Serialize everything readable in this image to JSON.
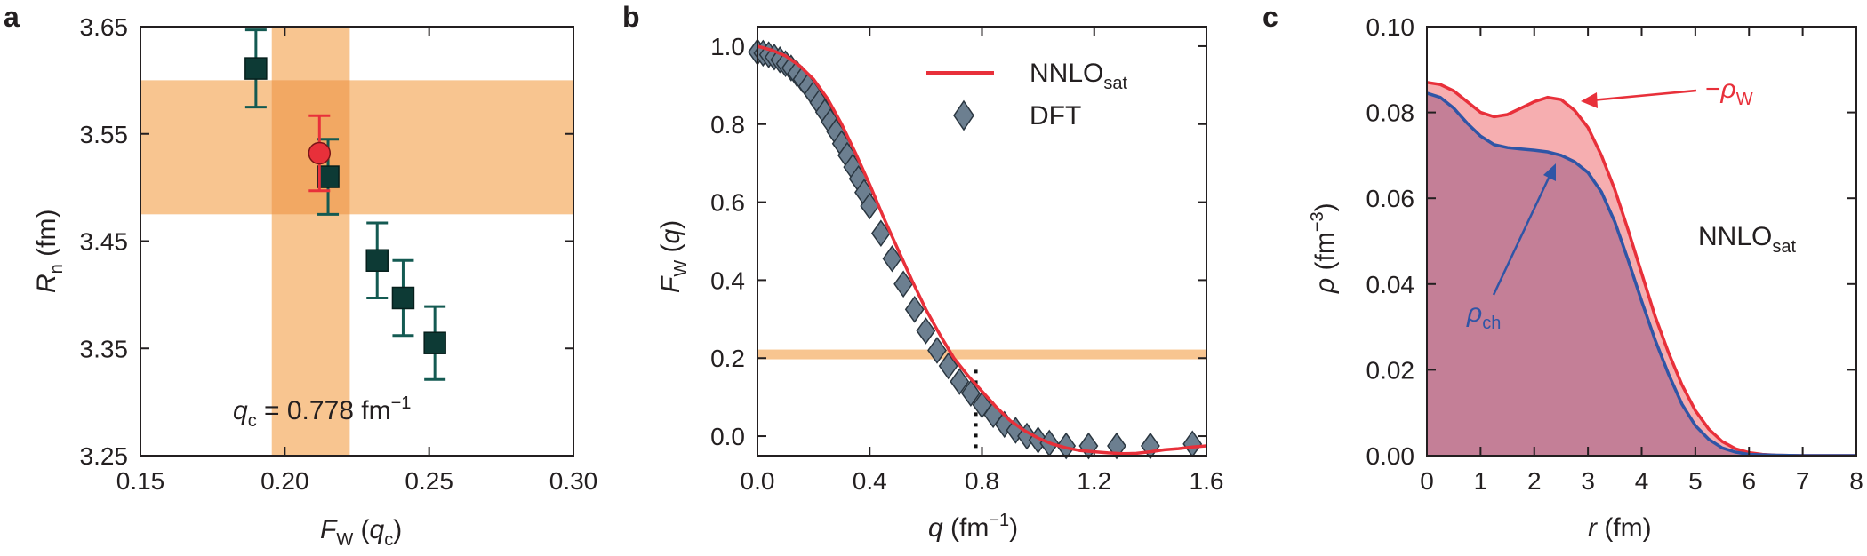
{
  "colors": {
    "band": "#f8c590",
    "band_overlap": "#f2a863",
    "square": "#0d3a35",
    "errbar": "#145a52",
    "red": "#e8303a",
    "blue": "#2f55a6",
    "diamond": "#6c7f90",
    "fill_ch": "#c47f97",
    "fill_w": "#f6aeb0"
  },
  "chart_data": [
    {
      "panel": "a",
      "type": "scatter",
      "xlabel_symbol": "F",
      "xlabel_sub": "W",
      "xlabel_arg": "q",
      "xlabel_arg_sub": "c",
      "ylabel_symbol": "R",
      "ylabel_sub": "n",
      "ylabel_unit": "(fm)",
      "xlim": [
        0.15,
        0.3
      ],
      "ylim": [
        3.25,
        3.65
      ],
      "xticks": [
        "0.15",
        "0.20",
        "0.25",
        "0.30"
      ],
      "yticks": [
        "3.25",
        "3.35",
        "3.45",
        "3.55",
        "3.65"
      ],
      "annotation": {
        "symbol": "q",
        "sub": "c",
        "text": " = 0.778 fm",
        "sup": "−1"
      },
      "bands": {
        "x": [
          0.1955,
          0.2225
        ],
        "y": [
          3.475,
          3.6
        ]
      },
      "series": [
        {
          "marker": "square",
          "points": [
            {
              "x": 0.19,
              "y": 3.611,
              "err": 0.036
            },
            {
              "x": 0.215,
              "y": 3.51,
              "err": 0.035
            },
            {
              "x": 0.232,
              "y": 3.432,
              "err": 0.035
            },
            {
              "x": 0.241,
              "y": 3.397,
              "err": 0.035
            },
            {
              "x": 0.252,
              "y": 3.355,
              "err": 0.034
            }
          ]
        },
        {
          "marker": "circle",
          "points": [
            {
              "x": 0.212,
              "y": 3.532,
              "err": 0.035
            }
          ]
        }
      ]
    },
    {
      "panel": "b",
      "type": "line",
      "xlabel_symbol": "q",
      "xlabel_unit": " (fm",
      "xlabel_sup": "−1",
      "ylabel_symbol": "F",
      "ylabel_sub": "W",
      "ylabel_arg": "q",
      "xlim": [
        0.0,
        1.6
      ],
      "ylim": [
        -0.05,
        1.05
      ],
      "xticks": [
        "0.0",
        "0.4",
        "0.8",
        "1.2",
        "1.6"
      ],
      "yticks": [
        "0.0",
        "0.2",
        "0.4",
        "0.6",
        "0.8",
        "1.0"
      ],
      "hband": [
        0.197,
        0.222
      ],
      "vline": 0.778,
      "legend": [
        {
          "name": "NNLO",
          "sub": "sat",
          "kind": "line"
        },
        {
          "name": "DFT",
          "sub": "",
          "kind": "diamond"
        }
      ],
      "series": [
        {
          "name": "NNLOsat",
          "kind": "line",
          "x": [
            0.0,
            0.05,
            0.1,
            0.15,
            0.2,
            0.25,
            0.3,
            0.35,
            0.4,
            0.45,
            0.5,
            0.55,
            0.6,
            0.65,
            0.7,
            0.75,
            0.8,
            0.85,
            0.9,
            0.95,
            1.0,
            1.05,
            1.1,
            1.15,
            1.2,
            1.25,
            1.3,
            1.35,
            1.4,
            1.45,
            1.5,
            1.55,
            1.6
          ],
          "y": [
            1.0,
            0.99,
            0.975,
            0.95,
            0.915,
            0.865,
            0.8,
            0.725,
            0.645,
            0.56,
            0.48,
            0.4,
            0.325,
            0.26,
            0.2,
            0.155,
            0.115,
            0.075,
            0.04,
            0.015,
            -0.005,
            -0.02,
            -0.03,
            -0.037,
            -0.04,
            -0.043,
            -0.045,
            -0.044,
            -0.04,
            -0.035,
            -0.032,
            -0.028,
            -0.025
          ]
        },
        {
          "name": "DFT",
          "kind": "diamond",
          "x": [
            0.0,
            0.02,
            0.04,
            0.06,
            0.08,
            0.1,
            0.12,
            0.14,
            0.16,
            0.18,
            0.2,
            0.22,
            0.24,
            0.26,
            0.28,
            0.3,
            0.32,
            0.34,
            0.36,
            0.38,
            0.4,
            0.44,
            0.48,
            0.52,
            0.56,
            0.6,
            0.64,
            0.68,
            0.72,
            0.76,
            0.8,
            0.84,
            0.88,
            0.92,
            0.96,
            1.0,
            1.04,
            1.1,
            1.18,
            1.28,
            1.4,
            1.55
          ],
          "y": [
            0.985,
            0.982,
            0.978,
            0.972,
            0.965,
            0.955,
            0.944,
            0.93,
            0.915,
            0.897,
            0.877,
            0.855,
            0.831,
            0.806,
            0.78,
            0.75,
            0.72,
            0.69,
            0.66,
            0.625,
            0.59,
            0.52,
            0.455,
            0.39,
            0.325,
            0.27,
            0.22,
            0.18,
            0.14,
            0.11,
            0.08,
            0.055,
            0.03,
            0.015,
            0.0,
            -0.01,
            -0.018,
            -0.025,
            -0.025,
            -0.025,
            -0.025,
            -0.02
          ]
        }
      ]
    },
    {
      "panel": "c",
      "type": "area",
      "xlabel_symbol": "r",
      "xlabel_unit": " (fm)",
      "ylabel_symbol": "ρ",
      "ylabel_unit": " (fm",
      "ylabel_sup": "−3",
      "xlim": [
        0,
        8
      ],
      "ylim": [
        0.0,
        0.1
      ],
      "xticks": [
        "0",
        "1",
        "2",
        "3",
        "4",
        "5",
        "6",
        "7",
        "8"
      ],
      "yticks": [
        "0.00",
        "0.02",
        "0.04",
        "0.06",
        "0.08",
        "0.10"
      ],
      "label_nnlo": {
        "text": "NNLO",
        "sub": "sat"
      },
      "label_w": {
        "prefix": "−",
        "symbol": "ρ",
        "sub": "W"
      },
      "label_ch": {
        "symbol": "ρ",
        "sub": "ch"
      },
      "series": [
        {
          "name": "ρch",
          "x": [
            0,
            0.25,
            0.5,
            0.75,
            1.0,
            1.25,
            1.5,
            1.75,
            2.0,
            2.25,
            2.5,
            2.75,
            3.0,
            3.25,
            3.5,
            3.75,
            4.0,
            4.25,
            4.5,
            4.75,
            5.0,
            5.25,
            5.5,
            5.75,
            6.0,
            6.5,
            7.0,
            7.5,
            8.0
          ],
          "y": [
            0.0845,
            0.0835,
            0.081,
            0.0775,
            0.0745,
            0.0725,
            0.0718,
            0.0715,
            0.0712,
            0.0708,
            0.07,
            0.0685,
            0.066,
            0.0615,
            0.0545,
            0.0455,
            0.036,
            0.027,
            0.019,
            0.012,
            0.007,
            0.0038,
            0.0018,
            0.0008,
            0.0003,
            0.0001,
            0.0,
            0.0,
            0.0
          ]
        },
        {
          "name": "−ρW",
          "x": [
            0,
            0.25,
            0.5,
            0.75,
            1.0,
            1.25,
            1.5,
            1.75,
            2.0,
            2.25,
            2.5,
            2.75,
            3.0,
            3.25,
            3.5,
            3.75,
            4.0,
            4.25,
            4.5,
            4.75,
            5.0,
            5.25,
            5.5,
            5.75,
            6.0,
            6.25,
            6.5,
            7.0,
            7.5,
            8.0
          ],
          "y": [
            0.087,
            0.0865,
            0.085,
            0.0825,
            0.08,
            0.079,
            0.0795,
            0.081,
            0.0825,
            0.0835,
            0.083,
            0.0805,
            0.0765,
            0.07,
            0.062,
            0.0525,
            0.0425,
            0.0325,
            0.024,
            0.0165,
            0.0105,
            0.0062,
            0.0033,
            0.0016,
            0.0007,
            0.0003,
            0.0001,
            0.0,
            0.0,
            0.0
          ]
        }
      ]
    }
  ]
}
